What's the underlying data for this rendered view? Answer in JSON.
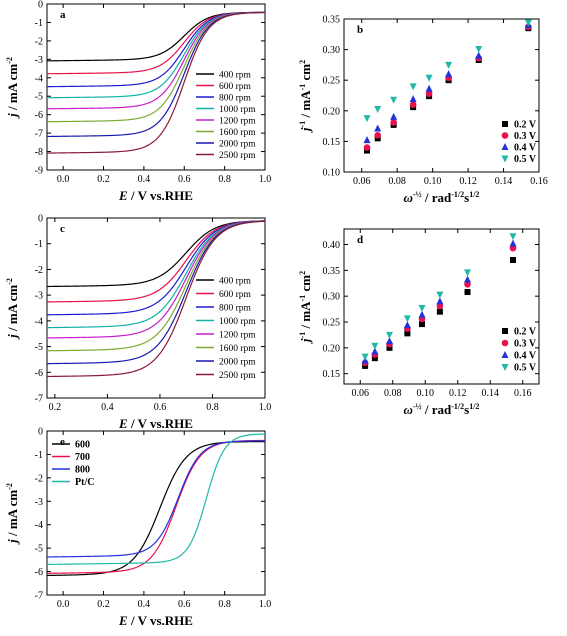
{
  "figure": {
    "background": "#ffffff"
  },
  "chart_data": [
    {
      "panel": "a",
      "type": "line",
      "xlabel": "E / V vs.RHE",
      "ylabel": "j / mA cm-2",
      "xlim": [
        -0.08,
        1.0
      ],
      "ylim": [
        -9,
        0
      ],
      "xticks": [
        0.0,
        0.2,
        0.4,
        0.6,
        0.8,
        1.0
      ],
      "yticks": [
        0,
        -1,
        -2,
        -3,
        -4,
        -5,
        -6,
        -7,
        -8,
        -9
      ],
      "legend_position": "right",
      "curve_shape": {
        "e_half": 0.6,
        "steepness": 0.06,
        "end": -0.45
      },
      "series": [
        {
          "name": "400 rpm",
          "color": "#000000",
          "limit": -3.0
        },
        {
          "name": "600 rpm",
          "color": "#e8114a",
          "limit": -3.7
        },
        {
          "name": "800 rpm",
          "color": "#1c1cd0",
          "limit": -4.4
        },
        {
          "name": "1000 rpm",
          "color": "#14b0a8",
          "limit": -5.0
        },
        {
          "name": "1200 rpm",
          "color": "#c81ec8",
          "limit": -5.6
        },
        {
          "name": "1600 rpm",
          "color": "#7fa832",
          "limit": -6.3
        },
        {
          "name": "2000 rpm",
          "color": "#1a1ab0",
          "limit": -7.1
        },
        {
          "name": "2500 rpm",
          "color": "#8a1a3c",
          "limit": -8.0
        }
      ]
    },
    {
      "panel": "b",
      "type": "scatter",
      "xlabel": "ω-½ / rad-1/2s1/2",
      "ylabel": "j-1 / mA-1 cm2",
      "xlim": [
        0.05,
        0.16
      ],
      "ylim": [
        0.1,
        0.35
      ],
      "xticks": [
        0.06,
        0.08,
        0.1,
        0.12,
        0.14,
        0.16
      ],
      "yticks": [
        0.1,
        0.15,
        0.2,
        0.25,
        0.3,
        0.35
      ],
      "legend_position": "bottom-right",
      "x": [
        0.063,
        0.069,
        0.078,
        0.089,
        0.098,
        0.109,
        0.126,
        0.154
      ],
      "series": [
        {
          "name": "0.2 V",
          "color": "#000000",
          "marker": "square",
          "values": [
            0.135,
            0.155,
            0.177,
            0.206,
            0.224,
            0.25,
            0.283,
            0.335
          ]
        },
        {
          "name": "0.3 V",
          "color": "#e8114a",
          "marker": "circle",
          "values": [
            0.14,
            0.16,
            0.181,
            0.21,
            0.228,
            0.254,
            0.286,
            0.337
          ]
        },
        {
          "name": "0.4 V",
          "color": "#2233dd",
          "marker": "triangle",
          "values": [
            0.152,
            0.171,
            0.19,
            0.219,
            0.236,
            0.26,
            0.29,
            0.34
          ]
        },
        {
          "name": "0.5 V",
          "color": "#22b8a8",
          "marker": "tri-down",
          "values": [
            0.188,
            0.203,
            0.218,
            0.24,
            0.254,
            0.275,
            0.301,
            0.344
          ]
        }
      ]
    },
    {
      "panel": "c",
      "type": "line",
      "xlabel": "E / V vs.RHE",
      "ylabel": "j / mA cm-2",
      "xlim": [
        0.17,
        1.0
      ],
      "ylim": [
        -7,
        0
      ],
      "xticks": [
        0.2,
        0.4,
        0.6,
        0.8,
        1.0
      ],
      "yticks": [
        0,
        -1,
        -2,
        -3,
        -4,
        -5,
        -6,
        -7
      ],
      "legend_position": "right",
      "curve_shape": {
        "e_half": 0.7,
        "steepness": 0.055,
        "end": -0.1
      },
      "series": [
        {
          "name": "400 rpm",
          "color": "#000000",
          "limit": -2.6
        },
        {
          "name": "600 rpm",
          "color": "#e8114a",
          "limit": -3.2
        },
        {
          "name": "800 rpm",
          "color": "#1c1cd0",
          "limit": -3.7
        },
        {
          "name": "1000 rpm",
          "color": "#14b0a8",
          "limit": -4.2
        },
        {
          "name": "1200 rpm",
          "color": "#c81ec8",
          "limit": -4.6
        },
        {
          "name": "1600 rpm",
          "color": "#7fa832",
          "limit": -5.1
        },
        {
          "name": "2000 rpm",
          "color": "#1a1ab0",
          "limit": -5.6
        },
        {
          "name": "2500 rpm",
          "color": "#8a1a3c",
          "limit": -6.1
        }
      ]
    },
    {
      "panel": "d",
      "type": "scatter",
      "xlabel": "ω-½ / rad-1/2s1/2",
      "ylabel": "j-1 / mA-1 cm2",
      "xlim": [
        0.05,
        0.17
      ],
      "ylim": [
        0.13,
        0.43
      ],
      "xticks": [
        0.06,
        0.08,
        0.1,
        0.12,
        0.14,
        0.16
      ],
      "yticks": [
        0.15,
        0.2,
        0.25,
        0.3,
        0.35,
        0.4
      ],
      "legend_position": "bottom-right",
      "x": [
        0.063,
        0.069,
        0.078,
        0.089,
        0.098,
        0.109,
        0.126,
        0.154
      ],
      "series": [
        {
          "name": "0.2 V",
          "color": "#000000",
          "marker": "square",
          "values": [
            0.165,
            0.18,
            0.2,
            0.228,
            0.246,
            0.27,
            0.308,
            0.37
          ]
        },
        {
          "name": "0.3 V",
          "color": "#e8114a",
          "marker": "circle",
          "values": [
            0.171,
            0.187,
            0.207,
            0.237,
            0.256,
            0.281,
            0.323,
            0.393
          ]
        },
        {
          "name": "0.4 V",
          "color": "#2233dd",
          "marker": "triangle",
          "values": [
            0.175,
            0.193,
            0.213,
            0.244,
            0.264,
            0.29,
            0.332,
            0.402
          ]
        },
        {
          "name": "0.5 V",
          "color": "#22b8a8",
          "marker": "tri-down",
          "values": [
            0.183,
            0.204,
            0.225,
            0.257,
            0.277,
            0.303,
            0.346,
            0.416
          ]
        }
      ]
    },
    {
      "panel": "e",
      "type": "line",
      "xlabel": "E / V vs.RHE",
      "ylabel": "j / mA cm-2",
      "xlim": [
        -0.08,
        1.0
      ],
      "ylim": [
        -7,
        0
      ],
      "xticks": [
        0.0,
        0.2,
        0.4,
        0.6,
        0.8,
        1.0
      ],
      "yticks": [
        0,
        -1,
        -2,
        -3,
        -4,
        -5,
        -6,
        -7
      ],
      "legend_position": "top-left",
      "series": [
        {
          "name": "600",
          "color": "#000000",
          "limit": -6.1,
          "e_half": 0.48,
          "steepness": 0.065,
          "end": -0.45,
          "slope": 0.7
        },
        {
          "name": "700",
          "color": "#e8114a",
          "limit": -6.0,
          "e_half": 0.56,
          "steepness": 0.06,
          "end": -0.4,
          "slope": 0.9
        },
        {
          "name": "800",
          "color": "#2233dd",
          "limit": -5.3,
          "e_half": 0.57,
          "steepness": 0.055,
          "end": -0.42,
          "slope": 0.9
        },
        {
          "name": "Pt/C",
          "color": "#22b8a8",
          "limit": -5.6,
          "e_half": 0.71,
          "steepness": 0.045,
          "end": -0.12,
          "slope": 0.6
        }
      ]
    }
  ]
}
